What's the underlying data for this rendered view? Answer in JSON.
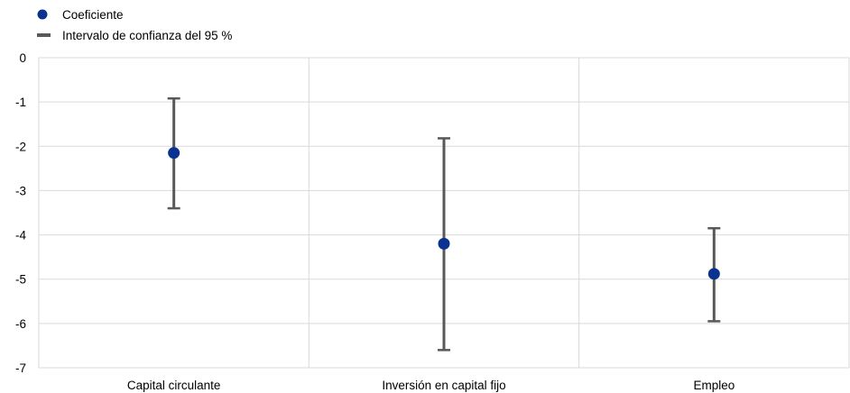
{
  "chart_data": {
    "type": "scatter",
    "categories": [
      "Capital circulante",
      "Inversión en capital fijo",
      "Empleo"
    ],
    "series": [
      {
        "name": "Coeficiente",
        "values": [
          -2.15,
          -4.2,
          -4.88
        ]
      },
      {
        "name": "Intervalo de confianza del 95 %",
        "lower": [
          -3.4,
          -6.6,
          -5.95
        ],
        "upper": [
          -0.92,
          -1.82,
          -3.85
        ]
      }
    ],
    "title": "",
    "xlabel": "",
    "ylabel": "",
    "ylim": [
      -7,
      0
    ],
    "yticks": [
      "0",
      "-1",
      "-2",
      "-3",
      "-4",
      "-5",
      "-6",
      "-7"
    ],
    "grid": true,
    "legend_position": "top-left",
    "colors": {
      "point": "#0a3291",
      "error_bar": "#595959",
      "grid": "#d9d9d9"
    }
  }
}
